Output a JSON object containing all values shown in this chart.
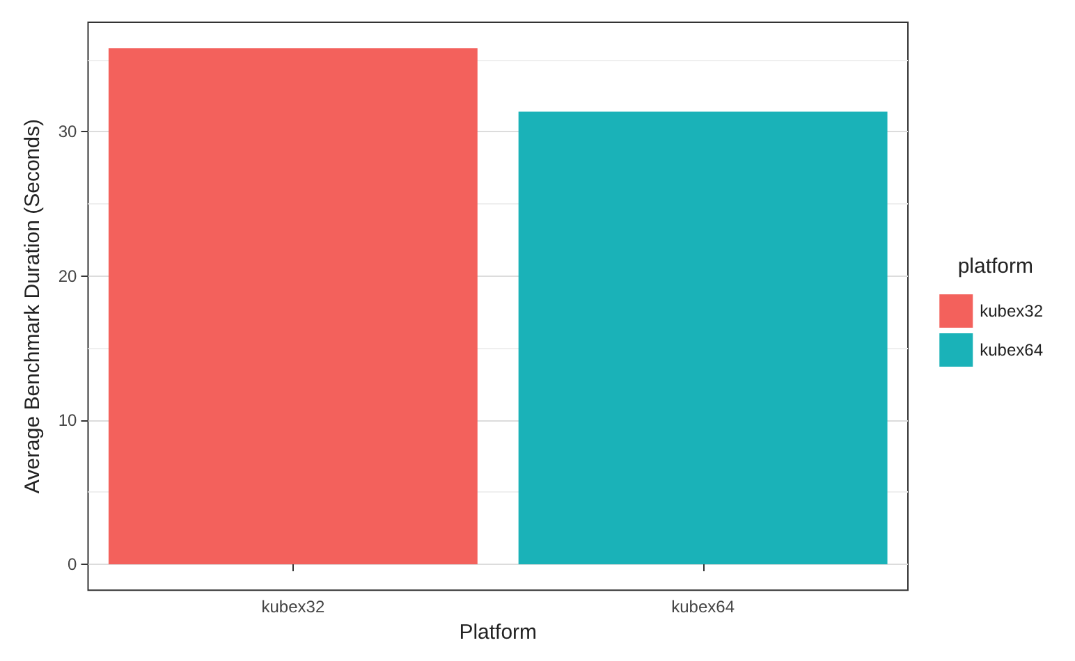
{
  "chart_data": {
    "type": "bar",
    "xlabel": "Platform",
    "ylabel": "Average Benchmark Duration (Seconds)",
    "legend_title": "platform",
    "categories": [
      "kubex32",
      "kubex64"
    ],
    "series": [
      {
        "name": "kubex32",
        "color": "#f3615c",
        "values": [
          35.8,
          null
        ]
      },
      {
        "name": "kubex64",
        "color": "#1ab2b8",
        "values": [
          null,
          31.4
        ]
      }
    ],
    "ylim": [
      -1.8,
      37.6
    ],
    "yticks": [
      0,
      10,
      20,
      30
    ],
    "grid": true,
    "legend": "right"
  }
}
